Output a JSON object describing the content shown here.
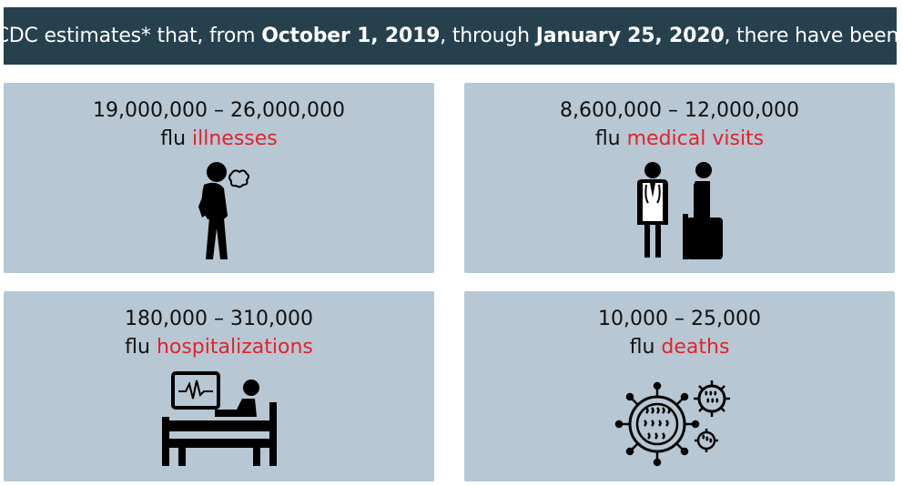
{
  "header": {
    "prefix": "CDC estimates* that, from ",
    "start_date": "October 1, 2019",
    "middle": ", through ",
    "end_date": "January 25, 2020",
    "suffix": ", there have been:"
  },
  "cards": [
    {
      "range": "19,000,000 – 26,000,000",
      "prefix": "flu ",
      "highlight": "illnesses",
      "icon": "sick-person-coughing-icon"
    },
    {
      "range": "8,600,000 – 12,000,000",
      "prefix": "flu ",
      "highlight": "medical visits",
      "icon": "doctor-and-patient-icon"
    },
    {
      "range": "180,000 – 310,000",
      "prefix": "flu ",
      "highlight": "hospitalizations",
      "icon": "hospital-bed-monitor-icon"
    },
    {
      "range": "10,000 – 25,000",
      "prefix": "flu ",
      "highlight": "deaths",
      "icon": "virus-particles-icon"
    }
  ],
  "colors": {
    "banner_bg": "#26404e",
    "card_bg": "#b7c7d3",
    "highlight": "#e2232b"
  }
}
